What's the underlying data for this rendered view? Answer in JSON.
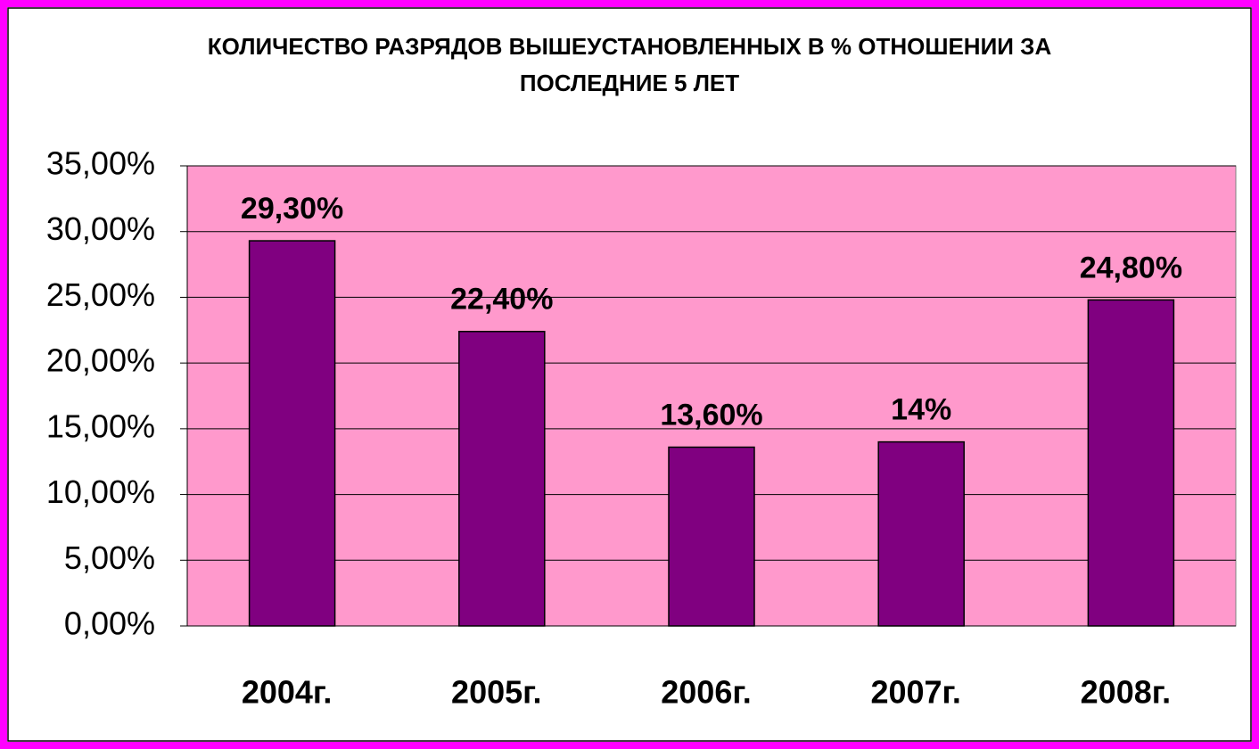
{
  "chart_data": {
    "type": "bar",
    "title": [
      "КОЛИЧЕСТВО РАЗРЯДОВ ВЫШЕУСТАНОВЛЕННЫХ В % ОТНОШЕНИИ ЗА",
      "ПОСЛЕДНИЕ 5 ЛЕТ"
    ],
    "categories": [
      "2004г.",
      "2005г.",
      "2006г.",
      "2007г.",
      "2008г."
    ],
    "values": [
      29.3,
      22.4,
      13.6,
      14,
      24.8
    ],
    "value_labels": [
      "29,30%",
      "22,40%",
      "13,60%",
      "14%",
      "24,80%"
    ],
    "color": "#800080",
    "plot_background": "#ff99cc",
    "ylim": [
      0,
      35
    ],
    "yticks": [
      {
        "value": 0,
        "label": "0,00%"
      },
      {
        "value": 5,
        "label": "5,00%"
      },
      {
        "value": 10,
        "label": "10,00%"
      },
      {
        "value": 15,
        "label": "15,00%"
      },
      {
        "value": 20,
        "label": "20,00%"
      },
      {
        "value": 25,
        "label": "25,00%"
      },
      {
        "value": 30,
        "label": "30,00%"
      },
      {
        "value": 35,
        "label": "35,00%"
      }
    ],
    "grid": true
  }
}
